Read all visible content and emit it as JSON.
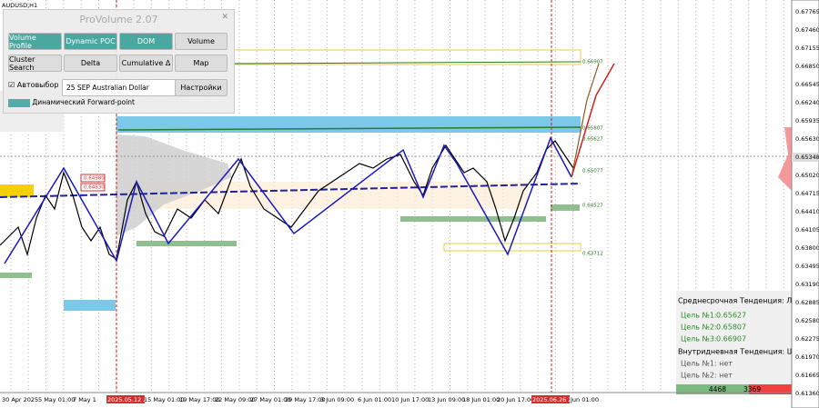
{
  "symbol": "AUDUSD,H1",
  "panel": {
    "title": "ProVolume 2.07",
    "buttons": [
      "Volume Profile",
      "Dynamic POC",
      "DOM",
      "Volume",
      "Cluster Search",
      "Delta",
      "Cumulative Δ",
      "Map"
    ],
    "auto_select": "Автовыбор",
    "instrument": "25 SEP Australian Dollar",
    "settings": "Настройки",
    "forward_point": "Динамический Forward-point"
  },
  "price_axis": [
    "0.67765",
    "0.67460",
    "0.67155",
    "0.66850",
    "0.66545",
    "0.66240",
    "0.65935",
    "0.65630",
    "0.65348",
    "0.65020",
    "0.64715",
    "0.64410",
    "0.64105",
    "0.63800",
    "0.63495",
    "0.63190",
    "0.62885",
    "0.62580",
    "0.62275",
    "0.61970",
    "0.61665",
    "0.61360"
  ],
  "time_axis": [
    "30 Apr 2025",
    "5 May 01:00",
    "7 May 1",
    "2025.05.12 21:00",
    "15 May 01:00",
    "19 May 17:00",
    "22 May 09:00",
    "27 May 01:00",
    "29 May 17:00",
    "3 Jun 09:00",
    "6 Jun 01:00",
    "10 Jun 17:00",
    "13 Jun 09:00",
    "18 Jun 01:00",
    "20 Jun 17:00",
    "2025.06.26 20:00",
    "Jun 01:00"
  ],
  "levels": [
    "0.66907",
    "0.65807",
    "0.65627",
    "0.65077",
    "0.64527",
    "0.63712",
    "0.64980",
    "0.64830"
  ],
  "info": {
    "mid_trend": "Среднесрочная Тенденция: Лонг",
    "targets": [
      {
        "label": "Цель №1:",
        "value": "0.65627"
      },
      {
        "label": "Цель №2:",
        "value": "0.65807"
      },
      {
        "label": "Цель №3:",
        "value": "0.66907"
      }
    ],
    "intraday_trend": "Внутридневная Тенденция: Шорт",
    "intraday_targets": [
      "Цель №1: нет",
      "Цель №2: нет"
    ],
    "buy": "4468",
    "sell": "3369"
  }
}
